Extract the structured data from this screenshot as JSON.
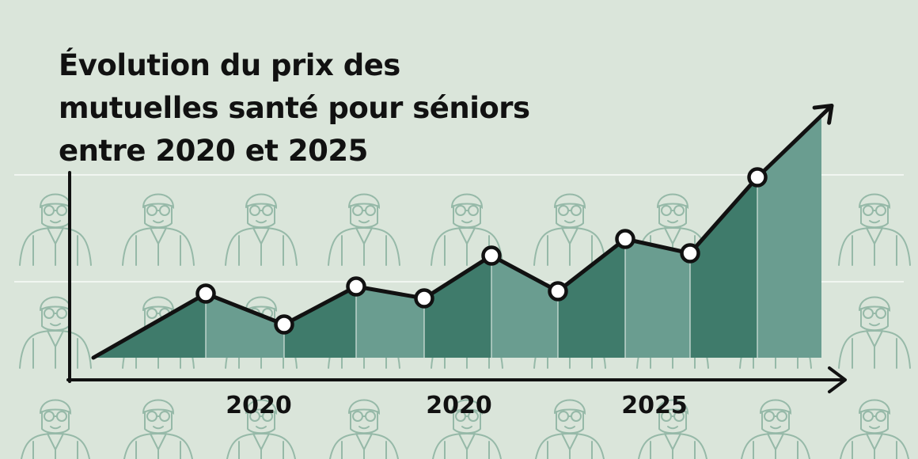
{
  "title": "Évolution du prix des mutuelles santé pour séniors entre 2020 et 2025",
  "colors": {
    "background": "#dae5da",
    "figure_stroke": "#96b9a8",
    "grid": "#f1f6f1",
    "area_dark": "#3f7b6b",
    "area_light": "#6a9d90",
    "line": "#111111",
    "marker_fill": "#ffffff"
  },
  "background_pattern_icon": "senior-person-icon",
  "chart_data": {
    "type": "area",
    "title": "Évolution du prix des mutuelles santé pour séniors entre 2020 et 2025",
    "xlabel": "",
    "ylabel": "",
    "x_tick_labels": [
      "2020",
      "2020",
      "2025"
    ],
    "grid": true,
    "y_axis_ticks_shown": false,
    "markers": true,
    "end_arrow": true,
    "series": [
      {
        "values": [
          0,
          2.7,
          1.4,
          3.0,
          2.5,
          4.3,
          2.8,
          5.0,
          4.4,
          7.6
        ]
      }
    ],
    "end_value": 10.2
  }
}
